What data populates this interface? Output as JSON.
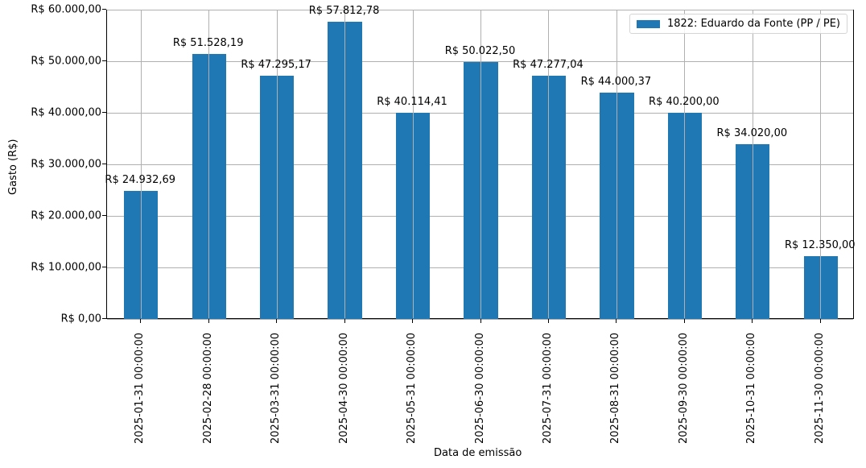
{
  "chart_data": {
    "type": "bar",
    "title": "",
    "xlabel": "Data de emissão",
    "ylabel": "Gasto (R$)",
    "ylim": [
      0,
      60000
    ],
    "grid": true,
    "legend_position": "upper right",
    "categories": [
      "2025-01-31 00:00:00",
      "2025-02-28 00:00:00",
      "2025-03-31 00:00:00",
      "2025-04-30 00:00:00",
      "2025-05-31 00:00:00",
      "2025-06-30 00:00:00",
      "2025-07-31 00:00:00",
      "2025-08-31 00:00:00",
      "2025-09-30 00:00:00",
      "2025-10-31 00:00:00",
      "2025-11-30 00:00:00"
    ],
    "series": [
      {
        "name": "1822: Eduardo da Fonte (PP / PE)",
        "color": "#1f77b4",
        "values": [
          24932.69,
          51528.19,
          47295.17,
          57812.78,
          40114.41,
          50022.5,
          47277.04,
          44000.37,
          40200.0,
          34020.0,
          12350.0
        ]
      }
    ],
    "data_labels": [
      "R$ 24.932,69",
      "R$ 51.528,19",
      "R$ 47.295,17",
      "R$ 57.812,78",
      "R$ 40.114,41",
      "R$ 50.022,50",
      "R$ 47.277,04",
      "R$ 44.000,37",
      "R$ 40.200,00",
      "R$ 34.020,00",
      "R$ 12.350,00"
    ],
    "yticks": [
      0,
      10000,
      20000,
      30000,
      40000,
      50000,
      60000
    ],
    "ytick_labels": [
      "R$ 0,00",
      "R$ 10.000,00",
      "R$ 20.000,00",
      "R$ 30.000,00",
      "R$ 40.000,00",
      "R$ 50.000,00",
      "R$ 60.000,00"
    ]
  }
}
